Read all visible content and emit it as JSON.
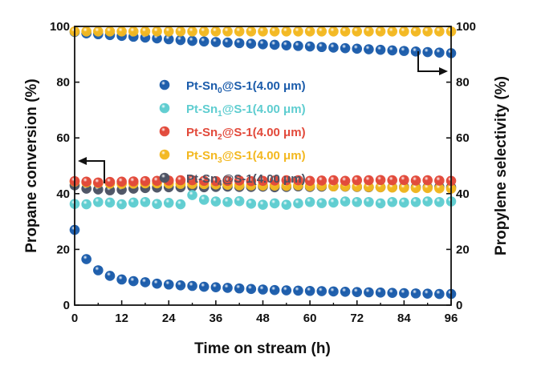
{
  "chart_data": {
    "type": "scatter",
    "xlabel": "Time on stream (h)",
    "ylabel": "Propane conversion (%)",
    "y2label": "Propylene selectivity (%)",
    "xlim": [
      0,
      96
    ],
    "ylim": [
      0,
      100
    ],
    "y2lim": [
      0,
      100
    ],
    "xticks": [
      "0",
      "12",
      "24",
      "36",
      "48",
      "60",
      "72",
      "84",
      "96"
    ],
    "yticks": [
      "0",
      "20",
      "40",
      "60",
      "80",
      "100"
    ],
    "y2ticks": [
      "0",
      "20",
      "40",
      "60",
      "80",
      "100"
    ],
    "grid": false,
    "legend_placement": "top-center",
    "x": [
      0,
      3,
      6,
      9,
      12,
      15,
      18,
      21,
      24,
      27,
      30,
      33,
      36,
      39,
      42,
      45,
      48,
      51,
      54,
      57,
      60,
      63,
      66,
      69,
      72,
      75,
      78,
      81,
      84,
      87,
      90,
      93,
      96
    ],
    "series": [
      {
        "name": "Pt-Sn0@S-1(4.00 μm)",
        "label_pre": "Pt-Sn",
        "label_sub": "0",
        "label_post": "@S-1(4.00 μm)",
        "color": "#1b5cab",
        "conversion": [
          27,
          16.5,
          12.5,
          10.5,
          9.2,
          8.6,
          8.2,
          7.7,
          7.4,
          7.1,
          6.9,
          6.6,
          6.4,
          6.2,
          6.0,
          5.8,
          5.6,
          5.4,
          5.3,
          5.2,
          5.1,
          5.0,
          4.9,
          4.8,
          4.7,
          4.6,
          4.5,
          4.4,
          4.3,
          4.2,
          4.1,
          4.0,
          4.0
        ],
        "selectivity": [
          98,
          97.5,
          97.2,
          96.9,
          96.6,
          96.3,
          96,
          95.7,
          95.4,
          95.1,
          94.8,
          94.6,
          94.4,
          94.2,
          94,
          93.8,
          93.6,
          93.4,
          93.2,
          93,
          92.8,
          92.6,
          92.4,
          92.2,
          92,
          91.8,
          91.6,
          91.4,
          91.2,
          91,
          90.8,
          90.6,
          90.4
        ]
      },
      {
        "name": "Pt-Sn1@S-1(4.00 μm)",
        "label_pre": "Pt-Sn",
        "label_sub": "1",
        "label_post": "@S-1(4.00 μm)",
        "color": "#5ecdd0",
        "conversion": [
          36.3,
          36.2,
          37,
          36.8,
          36.2,
          36.8,
          37,
          36.3,
          36.7,
          36.2,
          39.5,
          37.8,
          37.2,
          37,
          37.3,
          36.4,
          36,
          36.5,
          36,
          36.5,
          37,
          36.6,
          36.8,
          37.2,
          37,
          37,
          36.5,
          37,
          36.8,
          37,
          37.2,
          37,
          37.2
        ]
      },
      {
        "name": "Pt-Sn2@S-1(4.00 μm)",
        "label_pre": "Pt-Sn",
        "label_sub": "2",
        "label_post": "@S-1(4.00 μm)",
        "color": "#e2493a",
        "conversion": [
          44.5,
          44.3,
          44,
          44.2,
          44.3,
          44.4,
          44.5,
          44.6,
          44.7,
          44.8,
          44.8,
          44.6,
          44.5,
          44.6,
          44.7,
          44.5,
          44.6,
          44.7,
          44.8,
          44.8,
          44.6,
          44.7,
          44.8,
          44.6,
          44.8,
          44.8,
          44.9,
          44.8,
          44.9,
          44.7,
          44.8,
          44.7,
          44.6
        ]
      },
      {
        "name": "Pt-Sn3@S-1(4.00 μm)",
        "label_pre": "Pt-Sn",
        "label_sub": "3",
        "label_post": "@S-1(4.00 μm)",
        "color": "#f3b820",
        "conversion": [
          44.3,
          44,
          43.8,
          43.6,
          43.5,
          43.6,
          43.7,
          43.7,
          43.6,
          43.5,
          43.5,
          43.4,
          43.3,
          43.2,
          43,
          43,
          42.9,
          42.9,
          42.8,
          43,
          42.7,
          42.8,
          42.6,
          42.6,
          42.5,
          42.4,
          42.3,
          42.2,
          42.1,
          42,
          42,
          41.9,
          41.8
        ],
        "selectivity": [
          98.2,
          98.2,
          98.2,
          98.2,
          98.2,
          98.2,
          98.2,
          98.2,
          98.2,
          98.2,
          98.2,
          98.2,
          98.2,
          98.2,
          98.2,
          98.2,
          98.2,
          98.2,
          98.2,
          98.2,
          98.2,
          98.2,
          98.2,
          98.2,
          98.2,
          98.2,
          98.2,
          98.2,
          98.2,
          98.2,
          98.2,
          98.2,
          98.2
        ]
      },
      {
        "name": "Pt-Sn4@S-1(4.00 μm)",
        "label_pre": "Pt-Sn",
        "label_sub": "4",
        "label_post": "@S-1(4.00 μm)",
        "color": "#4b5263",
        "conversion": [
          43,
          41.8,
          41.5,
          41.2,
          41.4,
          41.8,
          42,
          42.2,
          42.3,
          42.3,
          42.5,
          42.3,
          42.4,
          42.5,
          42.4,
          42.4,
          42.5,
          42.3,
          42.4,
          42.6,
          42.4,
          42.5,
          42.6,
          42.5,
          42.4,
          42.3,
          42.3,
          42.3,
          42.4,
          42.3,
          42.3,
          42.4,
          42.3
        ]
      }
    ]
  }
}
